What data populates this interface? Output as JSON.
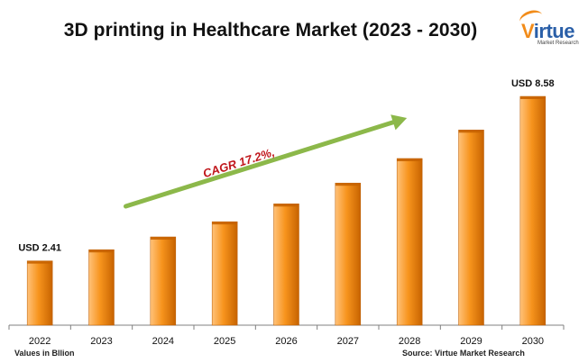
{
  "title": "3D printing in Healthcare Market (2023 - 2030)",
  "logo": {
    "brand_first": "V",
    "brand_rest": "irtue",
    "tagline": "Market Research"
  },
  "units_note": "Values in Bllion",
  "source_note": "Source: Virtue Market Research",
  "colors": {
    "bar_light": "#ffc27a",
    "bar_mid": "#f7941d",
    "bar_dark": "#c76300",
    "arrow": "#8cb84a",
    "cagr_text": "#c0161b",
    "axis": "#808080"
  },
  "chart_data": {
    "type": "bar",
    "categories": [
      "2022",
      "2023",
      "2024",
      "2025",
      "2026",
      "2027",
      "2028",
      "2029",
      "2030"
    ],
    "values": [
      2.41,
      2.83,
      3.31,
      3.88,
      4.55,
      5.33,
      6.25,
      7.32,
      8.58
    ],
    "data_labels": [
      {
        "index": 0,
        "text": "USD 2.41"
      },
      {
        "index": 8,
        "text": "USD 8.58"
      }
    ],
    "annotation": {
      "text": "CAGR 17.2%,",
      "from_category": "2023",
      "to_category": "2028"
    },
    "ylim": [
      0,
      8.58
    ],
    "grid": false,
    "legend": "none"
  }
}
